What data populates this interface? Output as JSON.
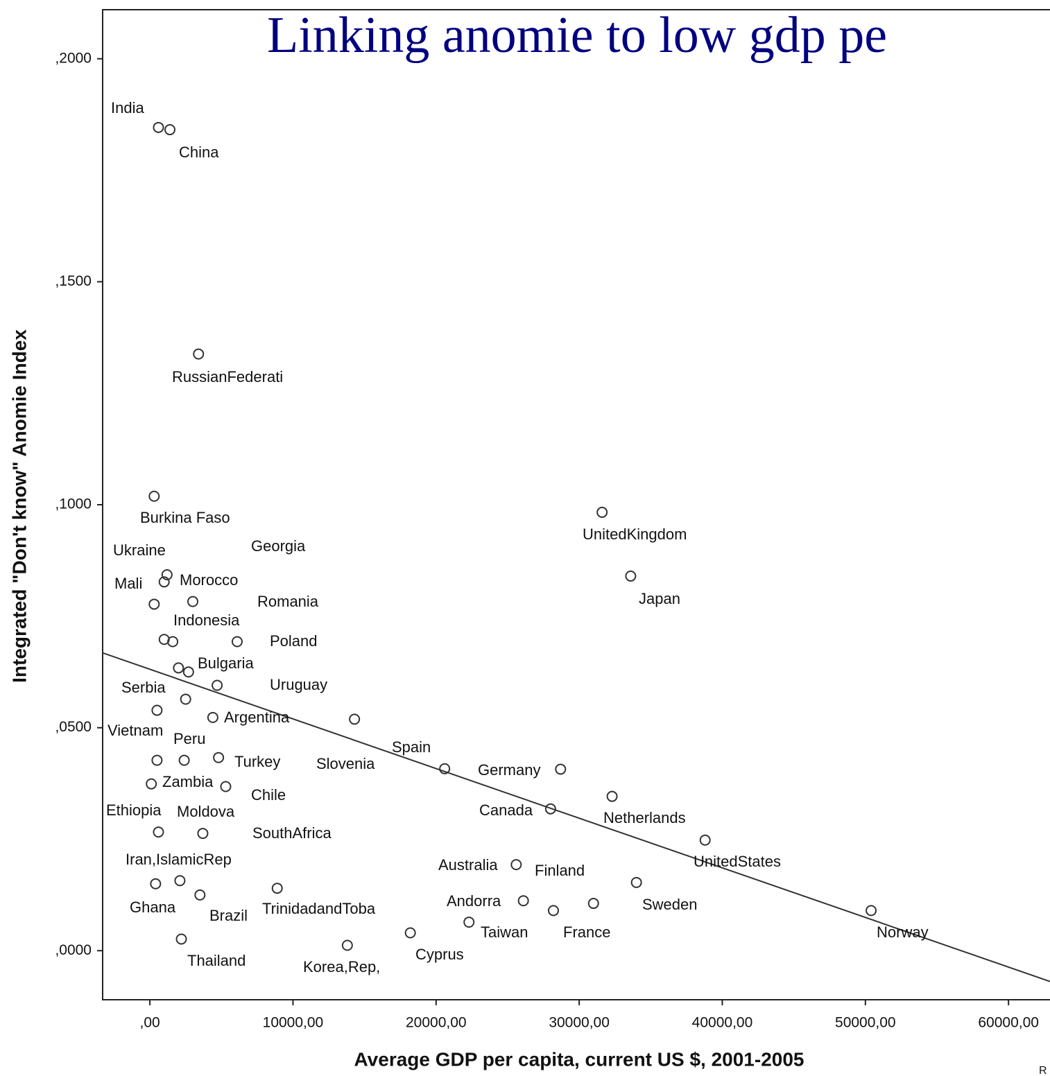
{
  "chart_data": {
    "type": "scatter",
    "title": "Linking anomie to low gdp pe",
    "x_label": "Average GDP per capita, current US $, 2001-2005",
    "y_label": "Integrated \"Don't know\" Anomie Index",
    "annotation": "R",
    "xlim": [
      -3300,
      62900
    ],
    "ylim": [
      -0.011,
      0.211
    ],
    "xticks": [
      {
        "value": 0,
        "label": ",00"
      },
      {
        "value": 10000,
        "label": "10000,00"
      },
      {
        "value": 20000,
        "label": "20000,00"
      },
      {
        "value": 30000,
        "label": "30000,00"
      },
      {
        "value": 40000,
        "label": "40000,00"
      },
      {
        "value": 50000,
        "label": "50000,00"
      },
      {
        "value": 60000,
        "label": "60000,00"
      }
    ],
    "yticks": [
      {
        "value": 0,
        "label": ",0000"
      },
      {
        "value": 0.05,
        "label": ",0500"
      },
      {
        "value": 0.1,
        "label": ",1000"
      },
      {
        "value": 0.15,
        "label": ",1500"
      },
      {
        "value": 0.2,
        "label": ",2000"
      }
    ],
    "labels": [
      "India",
      "China",
      "RussianFederati",
      "Burkina Faso",
      "UnitedKingdom",
      "Japan",
      "Ukraine",
      "Mali",
      "Morocco",
      "Georgia",
      "Indonesia",
      "Romania",
      "Poland",
      "Bulgaria",
      null,
      "Uruguay",
      "Serbia",
      "Vietnam",
      "Argentina",
      "Slovenia",
      "Spain",
      "Germany",
      "Peru",
      "Moldova",
      "Turkey",
      "Zambia",
      "Chile",
      "Ethiopia",
      "SouthAfrica",
      "Netherlands",
      "Canada",
      "UnitedStates",
      "Australia",
      "Sweden",
      "Ghana",
      "Iran,IslamicRep",
      "Brazil",
      "TrinidadandToba",
      "Andorra",
      "Finland",
      "France",
      "Norway",
      "Taiwan",
      "Cyprus",
      "Korea,Rep,",
      "Thailand"
    ],
    "x": [
      600,
      1400,
      3400,
      300,
      31600,
      33600,
      1200,
      1000,
      3000,
      300,
      1000,
      1600,
      6100,
      2000,
      2700,
      4700,
      2500,
      500,
      4400,
      14300,
      20600,
      28700,
      500,
      2400,
      4800,
      100,
      5300,
      600,
      3700,
      32300,
      28000,
      38800,
      25600,
      34000,
      400,
      2100,
      3500,
      8900,
      26100,
      31000,
      28200,
      50400,
      22300,
      18200,
      13800,
      2200
    ],
    "values": [
      0.1846,
      0.1841,
      0.1338,
      0.1019,
      0.0983,
      0.084,
      0.0843,
      0.0827,
      0.0783,
      0.0777,
      0.0698,
      0.0693,
      0.0693,
      0.0634,
      0.0625,
      0.0595,
      0.0564,
      0.0539,
      0.0523,
      0.0519,
      0.0408,
      0.0407,
      0.0427,
      0.0427,
      0.0433,
      0.0374,
      0.0368,
      0.0266,
      0.0263,
      0.0346,
      0.0318,
      0.0248,
      0.0193,
      0.0153,
      0.015,
      0.0157,
      0.0125,
      0.014,
      0.0112,
      0.0106,
      0.009,
      0.009,
      0.0064,
      0.004,
      0.0012,
      0.0026
    ],
    "color": "#333333",
    "fit": {
      "intercept": 0.0631,
      "slope": -1.113e-06
    }
  }
}
